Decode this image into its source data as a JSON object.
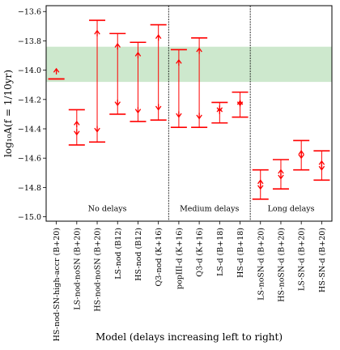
{
  "chart_data": {
    "type": "errorbar",
    "ylabel": "log₁₀A(f = 1/10yr)",
    "xlabel": "Model (delays increasing left to right)",
    "ylim": [
      -15.03,
      -13.56
    ],
    "yticks": [
      -15.0,
      -14.8,
      -14.6,
      -14.4,
      -14.2,
      -14.0,
      -13.8,
      -13.6
    ],
    "ytick_labels": [
      "−15.0",
      "−14.8",
      "−14.6",
      "−14.4",
      "−14.2",
      "−14.0",
      "−13.8",
      "−13.6"
    ],
    "band": {
      "ymin": -14.08,
      "ymax": -13.84,
      "color": "#c8e6c8"
    },
    "series_color": "#ff0000",
    "categories": [
      "HS-nod-SN-high-accr (B+20)",
      "LS-nod-noSN (B+20)",
      "HS-nod-noSN (B+20)",
      "LS-nod (B12)",
      "HS-nod (B12)",
      "Q3-nod (K+16)",
      "popIII-d (K+16)",
      "Q3-d (K+16)",
      "LS-d (B+18)",
      "HS-d (B+18)",
      "LS-noSN-d (B+20)",
      "HS-noSN-d (B+20)",
      "LS-SN-d (B+20)",
      "HS-SN-d (B+20)"
    ],
    "points": [
      {
        "lower": -14.06,
        "upper": -14.06,
        "median": -14.0,
        "markers": [
          -13.99
        ]
      },
      {
        "lower": -14.51,
        "upper": -14.27,
        "median": -14.4,
        "markers": [
          -14.35,
          -14.44
        ]
      },
      {
        "lower": -14.49,
        "upper": -13.66,
        "median": -14.1,
        "markers": [
          -13.73,
          -14.42
        ]
      },
      {
        "lower": -14.3,
        "upper": -13.75,
        "median": -14.0,
        "markers": [
          -13.82,
          -14.24
        ]
      },
      {
        "lower": -14.35,
        "upper": -13.81,
        "median": -14.1,
        "markers": [
          -13.88,
          -14.29
        ]
      },
      {
        "lower": -14.34,
        "upper": -13.69,
        "median": -14.0,
        "markers": [
          -13.76,
          -14.27
        ]
      },
      {
        "lower": -14.39,
        "upper": -13.86,
        "median": -14.1,
        "markers": [
          -13.93,
          -14.32
        ]
      },
      {
        "lower": -14.39,
        "upper": -13.78,
        "median": -14.1,
        "markers": [
          -13.85,
          -14.33
        ]
      },
      {
        "lower": -14.36,
        "upper": -14.22,
        "median": -14.28,
        "markers": [
          -14.26,
          -14.28
        ]
      },
      {
        "lower": -14.32,
        "upper": -14.15,
        "median": -14.23,
        "markers": [
          -14.21,
          -14.24
        ]
      },
      {
        "lower": -14.88,
        "upper": -14.68,
        "median": -14.78,
        "markers": [
          -14.75,
          -14.81
        ]
      },
      {
        "lower": -14.81,
        "upper": -14.61,
        "median": -14.71,
        "markers": [
          -14.68,
          -14.74
        ]
      },
      {
        "lower": -14.68,
        "upper": -14.48,
        "median": -14.58,
        "markers": [
          -14.55,
          -14.6
        ]
      },
      {
        "lower": -14.75,
        "upper": -14.55,
        "median": -14.65,
        "markers": [
          -14.62,
          -14.68
        ]
      }
    ],
    "separators_after": [
      6,
      10
    ],
    "groups": [
      {
        "label": "No delays",
        "start": 1,
        "end": 6
      },
      {
        "label": "Medium delays",
        "start": 7,
        "end": 10
      },
      {
        "label": "Long delays",
        "start": 11,
        "end": 14
      }
    ],
    "group_label_y": -14.94
  }
}
